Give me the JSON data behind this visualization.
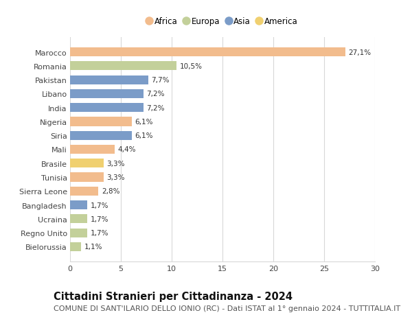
{
  "countries": [
    "Marocco",
    "Romania",
    "Pakistan",
    "Libano",
    "India",
    "Nigeria",
    "Siria",
    "Mali",
    "Brasile",
    "Tunisia",
    "Sierra Leone",
    "Bangladesh",
    "Ucraina",
    "Regno Unito",
    "Bielorussia"
  ],
  "values": [
    27.1,
    10.5,
    7.7,
    7.2,
    7.2,
    6.1,
    6.1,
    4.4,
    3.3,
    3.3,
    2.8,
    1.7,
    1.7,
    1.7,
    1.1
  ],
  "labels": [
    "27,1%",
    "10,5%",
    "7,7%",
    "7,2%",
    "7,2%",
    "6,1%",
    "6,1%",
    "4,4%",
    "3,3%",
    "3,3%",
    "2,8%",
    "1,7%",
    "1,7%",
    "1,7%",
    "1,1%"
  ],
  "continents": [
    "Africa",
    "Europa",
    "Asia",
    "Asia",
    "Asia",
    "Africa",
    "Asia",
    "Africa",
    "America",
    "Africa",
    "Africa",
    "Asia",
    "Europa",
    "Europa",
    "Europa"
  ],
  "colors": {
    "Africa": "#F2BC8D",
    "Europa": "#C3D09A",
    "Asia": "#7B9CC8",
    "America": "#F0D070"
  },
  "legend_order": [
    "Africa",
    "Europa",
    "Asia",
    "America"
  ],
  "xlim": [
    0,
    30
  ],
  "xticks": [
    0,
    5,
    10,
    15,
    20,
    25,
    30
  ],
  "title": "Cittadini Stranieri per Cittadinanza - 2024",
  "subtitle": "COMUNE DI SANT'ILARIO DELLO IONIO (RC) - Dati ISTAT al 1° gennaio 2024 - TUTTITALIA.IT",
  "background_color": "#ffffff",
  "grid_color": "#d8d8d8",
  "bar_height": 0.65,
  "title_fontsize": 10.5,
  "subtitle_fontsize": 8,
  "label_fontsize": 7.5,
  "tick_fontsize": 8,
  "legend_fontsize": 8.5
}
